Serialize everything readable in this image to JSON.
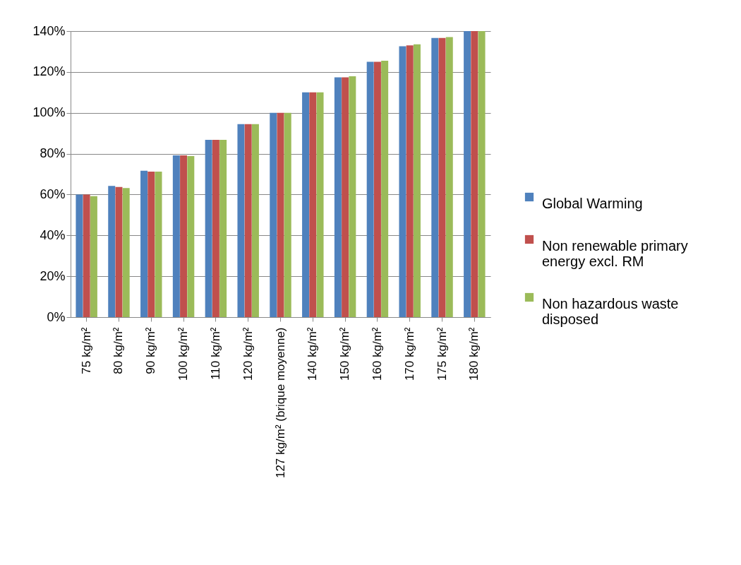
{
  "chart_data": {
    "type": "bar",
    "categories": [
      "75 kg/m²",
      "80 kg/m²",
      "90 kg/m²",
      "100 kg/m²",
      "110 kg/m²",
      "120 kg/m²",
      "127 kg/m² (brique moyenne)",
      "140 kg/m²",
      "150 kg/m²",
      "160 kg/m²",
      "170 kg/m²",
      "175 kg/m²",
      "180 kg/m²"
    ],
    "series": [
      {
        "name": "Global Warming",
        "color": "#4f81bd",
        "values": [
          60,
          64.2,
          71.6,
          79.2,
          86.8,
          94.5,
          100,
          110,
          117.4,
          125,
          132.6,
          136.6,
          140
        ]
      },
      {
        "name": "Non renewable primary energy excl. RM",
        "color": "#c0504d",
        "values": [
          60,
          63.7,
          71.2,
          79.2,
          86.8,
          94.5,
          100,
          110,
          117.4,
          125,
          133,
          136.6,
          140
        ]
      },
      {
        "name": "Non hazardous waste disposed",
        "color": "#9bbb59",
        "values": [
          59.2,
          63.2,
          71.2,
          78.8,
          86.8,
          94.5,
          100,
          110,
          117.9,
          125.5,
          133.5,
          137.1,
          140
        ]
      }
    ],
    "ylim": [
      0,
      140
    ],
    "yticks": [
      {
        "value": 0,
        "label": "0%"
      },
      {
        "value": 20,
        "label": "20%"
      },
      {
        "value": 40,
        "label": "40%"
      },
      {
        "value": 60,
        "label": "60%"
      },
      {
        "value": 80,
        "label": "80%"
      },
      {
        "value": 100,
        "label": "100%"
      },
      {
        "value": 120,
        "label": "120%"
      },
      {
        "value": 140,
        "label": "140%"
      }
    ],
    "grid": "y",
    "legend": "right"
  }
}
